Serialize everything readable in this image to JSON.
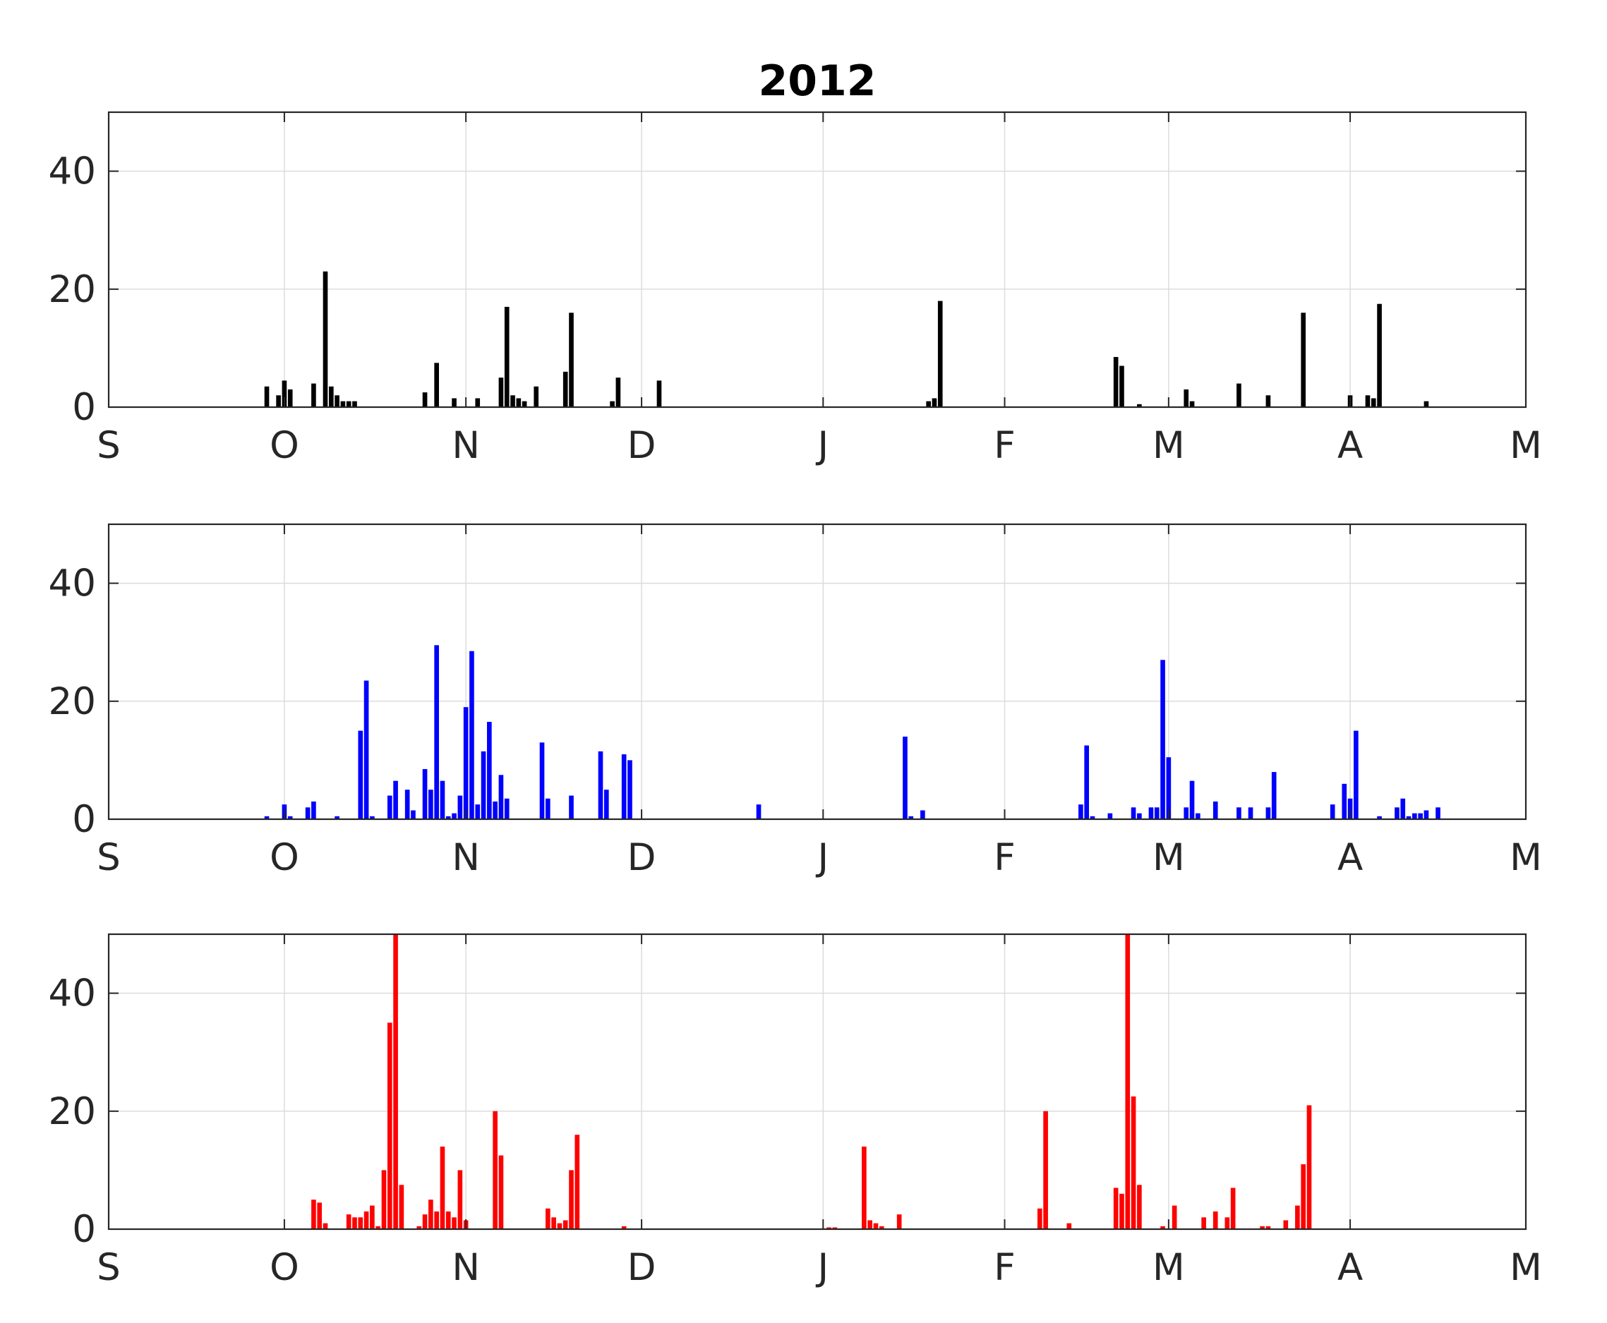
{
  "chart_data": {
    "title": "2012",
    "type": "bar",
    "x_ticks": [
      "S",
      "O",
      "N",
      "D",
      "J",
      "F",
      "M",
      "A",
      "M"
    ],
    "y_ticks": [
      0,
      20,
      40
    ],
    "ylim": [
      0,
      50
    ],
    "x_range": [
      "2012-09-01",
      "2013-05-01"
    ],
    "grid": true,
    "panels": [
      {
        "color": "#000000",
        "series": [
          {
            "x": "2012-09-28",
            "y": 3.5
          },
          {
            "x": "2012-09-30",
            "y": 2
          },
          {
            "x": "2012-10-01",
            "y": 4.5
          },
          {
            "x": "2012-10-02",
            "y": 3
          },
          {
            "x": "2012-10-06",
            "y": 4
          },
          {
            "x": "2012-10-08",
            "y": 23
          },
          {
            "x": "2012-10-09",
            "y": 3.5
          },
          {
            "x": "2012-10-10",
            "y": 2
          },
          {
            "x": "2012-10-11",
            "y": 1
          },
          {
            "x": "2012-10-12",
            "y": 1
          },
          {
            "x": "2012-10-13",
            "y": 1
          },
          {
            "x": "2012-10-25",
            "y": 2.5
          },
          {
            "x": "2012-10-27",
            "y": 7.5
          },
          {
            "x": "2012-10-30",
            "y": 1.5
          },
          {
            "x": "2012-11-03",
            "y": 1.5
          },
          {
            "x": "2012-11-07",
            "y": 5
          },
          {
            "x": "2012-11-08",
            "y": 17
          },
          {
            "x": "2012-11-09",
            "y": 2
          },
          {
            "x": "2012-11-10",
            "y": 1.5
          },
          {
            "x": "2012-11-11",
            "y": 1
          },
          {
            "x": "2012-11-13",
            "y": 3.5
          },
          {
            "x": "2012-11-18",
            "y": 6
          },
          {
            "x": "2012-11-19",
            "y": 16
          },
          {
            "x": "2012-11-26",
            "y": 1
          },
          {
            "x": "2012-11-27",
            "y": 5
          },
          {
            "x": "2012-12-04",
            "y": 4.5
          },
          {
            "x": "2013-01-19",
            "y": 1
          },
          {
            "x": "2013-01-20",
            "y": 1.5
          },
          {
            "x": "2013-01-21",
            "y": 18
          },
          {
            "x": "2013-02-20",
            "y": 8.5
          },
          {
            "x": "2013-02-21",
            "y": 7
          },
          {
            "x": "2013-02-24",
            "y": 0.5
          },
          {
            "x": "2013-03-04",
            "y": 3
          },
          {
            "x": "2013-03-05",
            "y": 1
          },
          {
            "x": "2013-03-13",
            "y": 4
          },
          {
            "x": "2013-03-18",
            "y": 2
          },
          {
            "x": "2013-03-24",
            "y": 16
          },
          {
            "x": "2013-04-01",
            "y": 2
          },
          {
            "x": "2013-04-04",
            "y": 2
          },
          {
            "x": "2013-04-05",
            "y": 1.5
          },
          {
            "x": "2013-04-06",
            "y": 17.5
          },
          {
            "x": "2013-04-14",
            "y": 1
          }
        ]
      },
      {
        "color": "#0000ff",
        "series": [
          {
            "x": "2012-09-28",
            "y": 0.5
          },
          {
            "x": "2012-10-01",
            "y": 2.5
          },
          {
            "x": "2012-10-02",
            "y": 0.5
          },
          {
            "x": "2012-10-05",
            "y": 2
          },
          {
            "x": "2012-10-06",
            "y": 3
          },
          {
            "x": "2012-10-10",
            "y": 0.5
          },
          {
            "x": "2012-10-14",
            "y": 15
          },
          {
            "x": "2012-10-15",
            "y": 23.5
          },
          {
            "x": "2012-10-16",
            "y": 0.5
          },
          {
            "x": "2012-10-19",
            "y": 4
          },
          {
            "x": "2012-10-20",
            "y": 6.5
          },
          {
            "x": "2012-10-22",
            "y": 5
          },
          {
            "x": "2012-10-23",
            "y": 1.5
          },
          {
            "x": "2012-10-25",
            "y": 8.5
          },
          {
            "x": "2012-10-26",
            "y": 5
          },
          {
            "x": "2012-10-27",
            "y": 29.5
          },
          {
            "x": "2012-10-28",
            "y": 6.5
          },
          {
            "x": "2012-10-29",
            "y": 0.5
          },
          {
            "x": "2012-10-30",
            "y": 1
          },
          {
            "x": "2012-10-31",
            "y": 4
          },
          {
            "x": "2012-11-01",
            "y": 19
          },
          {
            "x": "2012-11-02",
            "y": 28.5
          },
          {
            "x": "2012-11-03",
            "y": 2.5
          },
          {
            "x": "2012-11-04",
            "y": 11.5
          },
          {
            "x": "2012-11-05",
            "y": 16.5
          },
          {
            "x": "2012-11-06",
            "y": 3
          },
          {
            "x": "2012-11-07",
            "y": 7.5
          },
          {
            "x": "2012-11-08",
            "y": 3.5
          },
          {
            "x": "2012-11-14",
            "y": 13
          },
          {
            "x": "2012-11-15",
            "y": 3.5
          },
          {
            "x": "2012-11-19",
            "y": 4
          },
          {
            "x": "2012-11-24",
            "y": 11.5
          },
          {
            "x": "2012-11-25",
            "y": 5
          },
          {
            "x": "2012-11-28",
            "y": 11
          },
          {
            "x": "2012-11-29",
            "y": 10
          },
          {
            "x": "2012-12-21",
            "y": 2.5
          },
          {
            "x": "2013-01-15",
            "y": 14
          },
          {
            "x": "2013-01-16",
            "y": 0.5
          },
          {
            "x": "2013-01-18",
            "y": 1.5
          },
          {
            "x": "2013-02-14",
            "y": 2.5
          },
          {
            "x": "2013-02-15",
            "y": 12.5
          },
          {
            "x": "2013-02-16",
            "y": 0.5
          },
          {
            "x": "2013-02-19",
            "y": 1
          },
          {
            "x": "2013-02-23",
            "y": 2
          },
          {
            "x": "2013-02-24",
            "y": 1
          },
          {
            "x": "2013-02-26",
            "y": 2
          },
          {
            "x": "2013-02-27",
            "y": 2
          },
          {
            "x": "2013-02-28",
            "y": 27
          },
          {
            "x": "2013-03-01",
            "y": 10.5
          },
          {
            "x": "2013-03-04",
            "y": 2
          },
          {
            "x": "2013-03-05",
            "y": 6.5
          },
          {
            "x": "2013-03-06",
            "y": 1
          },
          {
            "x": "2013-03-09",
            "y": 3
          },
          {
            "x": "2013-03-13",
            "y": 2
          },
          {
            "x": "2013-03-15",
            "y": 2
          },
          {
            "x": "2013-03-18",
            "y": 2
          },
          {
            "x": "2013-03-19",
            "y": 8
          },
          {
            "x": "2013-03-29",
            "y": 2.5
          },
          {
            "x": "2013-03-31",
            "y": 6
          },
          {
            "x": "2013-04-01",
            "y": 3.5
          },
          {
            "x": "2013-04-02",
            "y": 15
          },
          {
            "x": "2013-04-06",
            "y": 0.5
          },
          {
            "x": "2013-04-09",
            "y": 2
          },
          {
            "x": "2013-04-10",
            "y": 3.5
          },
          {
            "x": "2013-04-11",
            "y": 0.5
          },
          {
            "x": "2013-04-12",
            "y": 1
          },
          {
            "x": "2013-04-13",
            "y": 1
          },
          {
            "x": "2013-04-14",
            "y": 1.5
          },
          {
            "x": "2013-04-16",
            "y": 2
          }
        ]
      },
      {
        "color": "#ff0000",
        "series": [
          {
            "x": "2012-10-06",
            "y": 5
          },
          {
            "x": "2012-10-07",
            "y": 4.5
          },
          {
            "x": "2012-10-08",
            "y": 1
          },
          {
            "x": "2012-10-12",
            "y": 2.5
          },
          {
            "x": "2012-10-13",
            "y": 2
          },
          {
            "x": "2012-10-14",
            "y": 2
          },
          {
            "x": "2012-10-15",
            "y": 3
          },
          {
            "x": "2012-10-16",
            "y": 4
          },
          {
            "x": "2012-10-17",
            "y": 0.5
          },
          {
            "x": "2012-10-18",
            "y": 10
          },
          {
            "x": "2012-10-19",
            "y": 35
          },
          {
            "x": "2012-10-20",
            "y": 50
          },
          {
            "x": "2012-10-21",
            "y": 7.5
          },
          {
            "x": "2012-10-24",
            "y": 0.5
          },
          {
            "x": "2012-10-25",
            "y": 2.5
          },
          {
            "x": "2012-10-26",
            "y": 5
          },
          {
            "x": "2012-10-27",
            "y": 3
          },
          {
            "x": "2012-10-28",
            "y": 14
          },
          {
            "x": "2012-10-29",
            "y": 3
          },
          {
            "x": "2012-10-30",
            "y": 2
          },
          {
            "x": "2012-10-31",
            "y": 10
          },
          {
            "x": "2012-11-01",
            "y": 1.5
          },
          {
            "x": "2012-11-06",
            "y": 20
          },
          {
            "x": "2012-11-07",
            "y": 12.5
          },
          {
            "x": "2012-11-15",
            "y": 3.5
          },
          {
            "x": "2012-11-16",
            "y": 2
          },
          {
            "x": "2012-11-17",
            "y": 1
          },
          {
            "x": "2012-11-18",
            "y": 1.5
          },
          {
            "x": "2012-11-19",
            "y": 10
          },
          {
            "x": "2012-11-20",
            "y": 16
          },
          {
            "x": "2012-11-28",
            "y": 0.5
          },
          {
            "x": "2013-01-02",
            "y": 0.3
          },
          {
            "x": "2013-01-03",
            "y": 0.3
          },
          {
            "x": "2013-01-08",
            "y": 14
          },
          {
            "x": "2013-01-09",
            "y": 1.5
          },
          {
            "x": "2013-01-10",
            "y": 1
          },
          {
            "x": "2013-01-11",
            "y": 0.5
          },
          {
            "x": "2013-01-14",
            "y": 2.5
          },
          {
            "x": "2013-02-07",
            "y": 3.5
          },
          {
            "x": "2013-02-08",
            "y": 20
          },
          {
            "x": "2013-02-12",
            "y": 1
          },
          {
            "x": "2013-02-20",
            "y": 7
          },
          {
            "x": "2013-02-21",
            "y": 6
          },
          {
            "x": "2013-02-22",
            "y": 50
          },
          {
            "x": "2013-02-23",
            "y": 22.5
          },
          {
            "x": "2013-02-24",
            "y": 7.5
          },
          {
            "x": "2013-02-28",
            "y": 0.5
          },
          {
            "x": "2013-03-02",
            "y": 4
          },
          {
            "x": "2013-03-07",
            "y": 2
          },
          {
            "x": "2013-03-09",
            "y": 3
          },
          {
            "x": "2013-03-11",
            "y": 2
          },
          {
            "x": "2013-03-12",
            "y": 7
          },
          {
            "x": "2013-03-17",
            "y": 0.5
          },
          {
            "x": "2013-03-18",
            "y": 0.5
          },
          {
            "x": "2013-03-21",
            "y": 1.5
          },
          {
            "x": "2013-03-23",
            "y": 4
          },
          {
            "x": "2013-03-24",
            "y": 11
          },
          {
            "x": "2013-03-25",
            "y": 21
          }
        ]
      }
    ]
  }
}
